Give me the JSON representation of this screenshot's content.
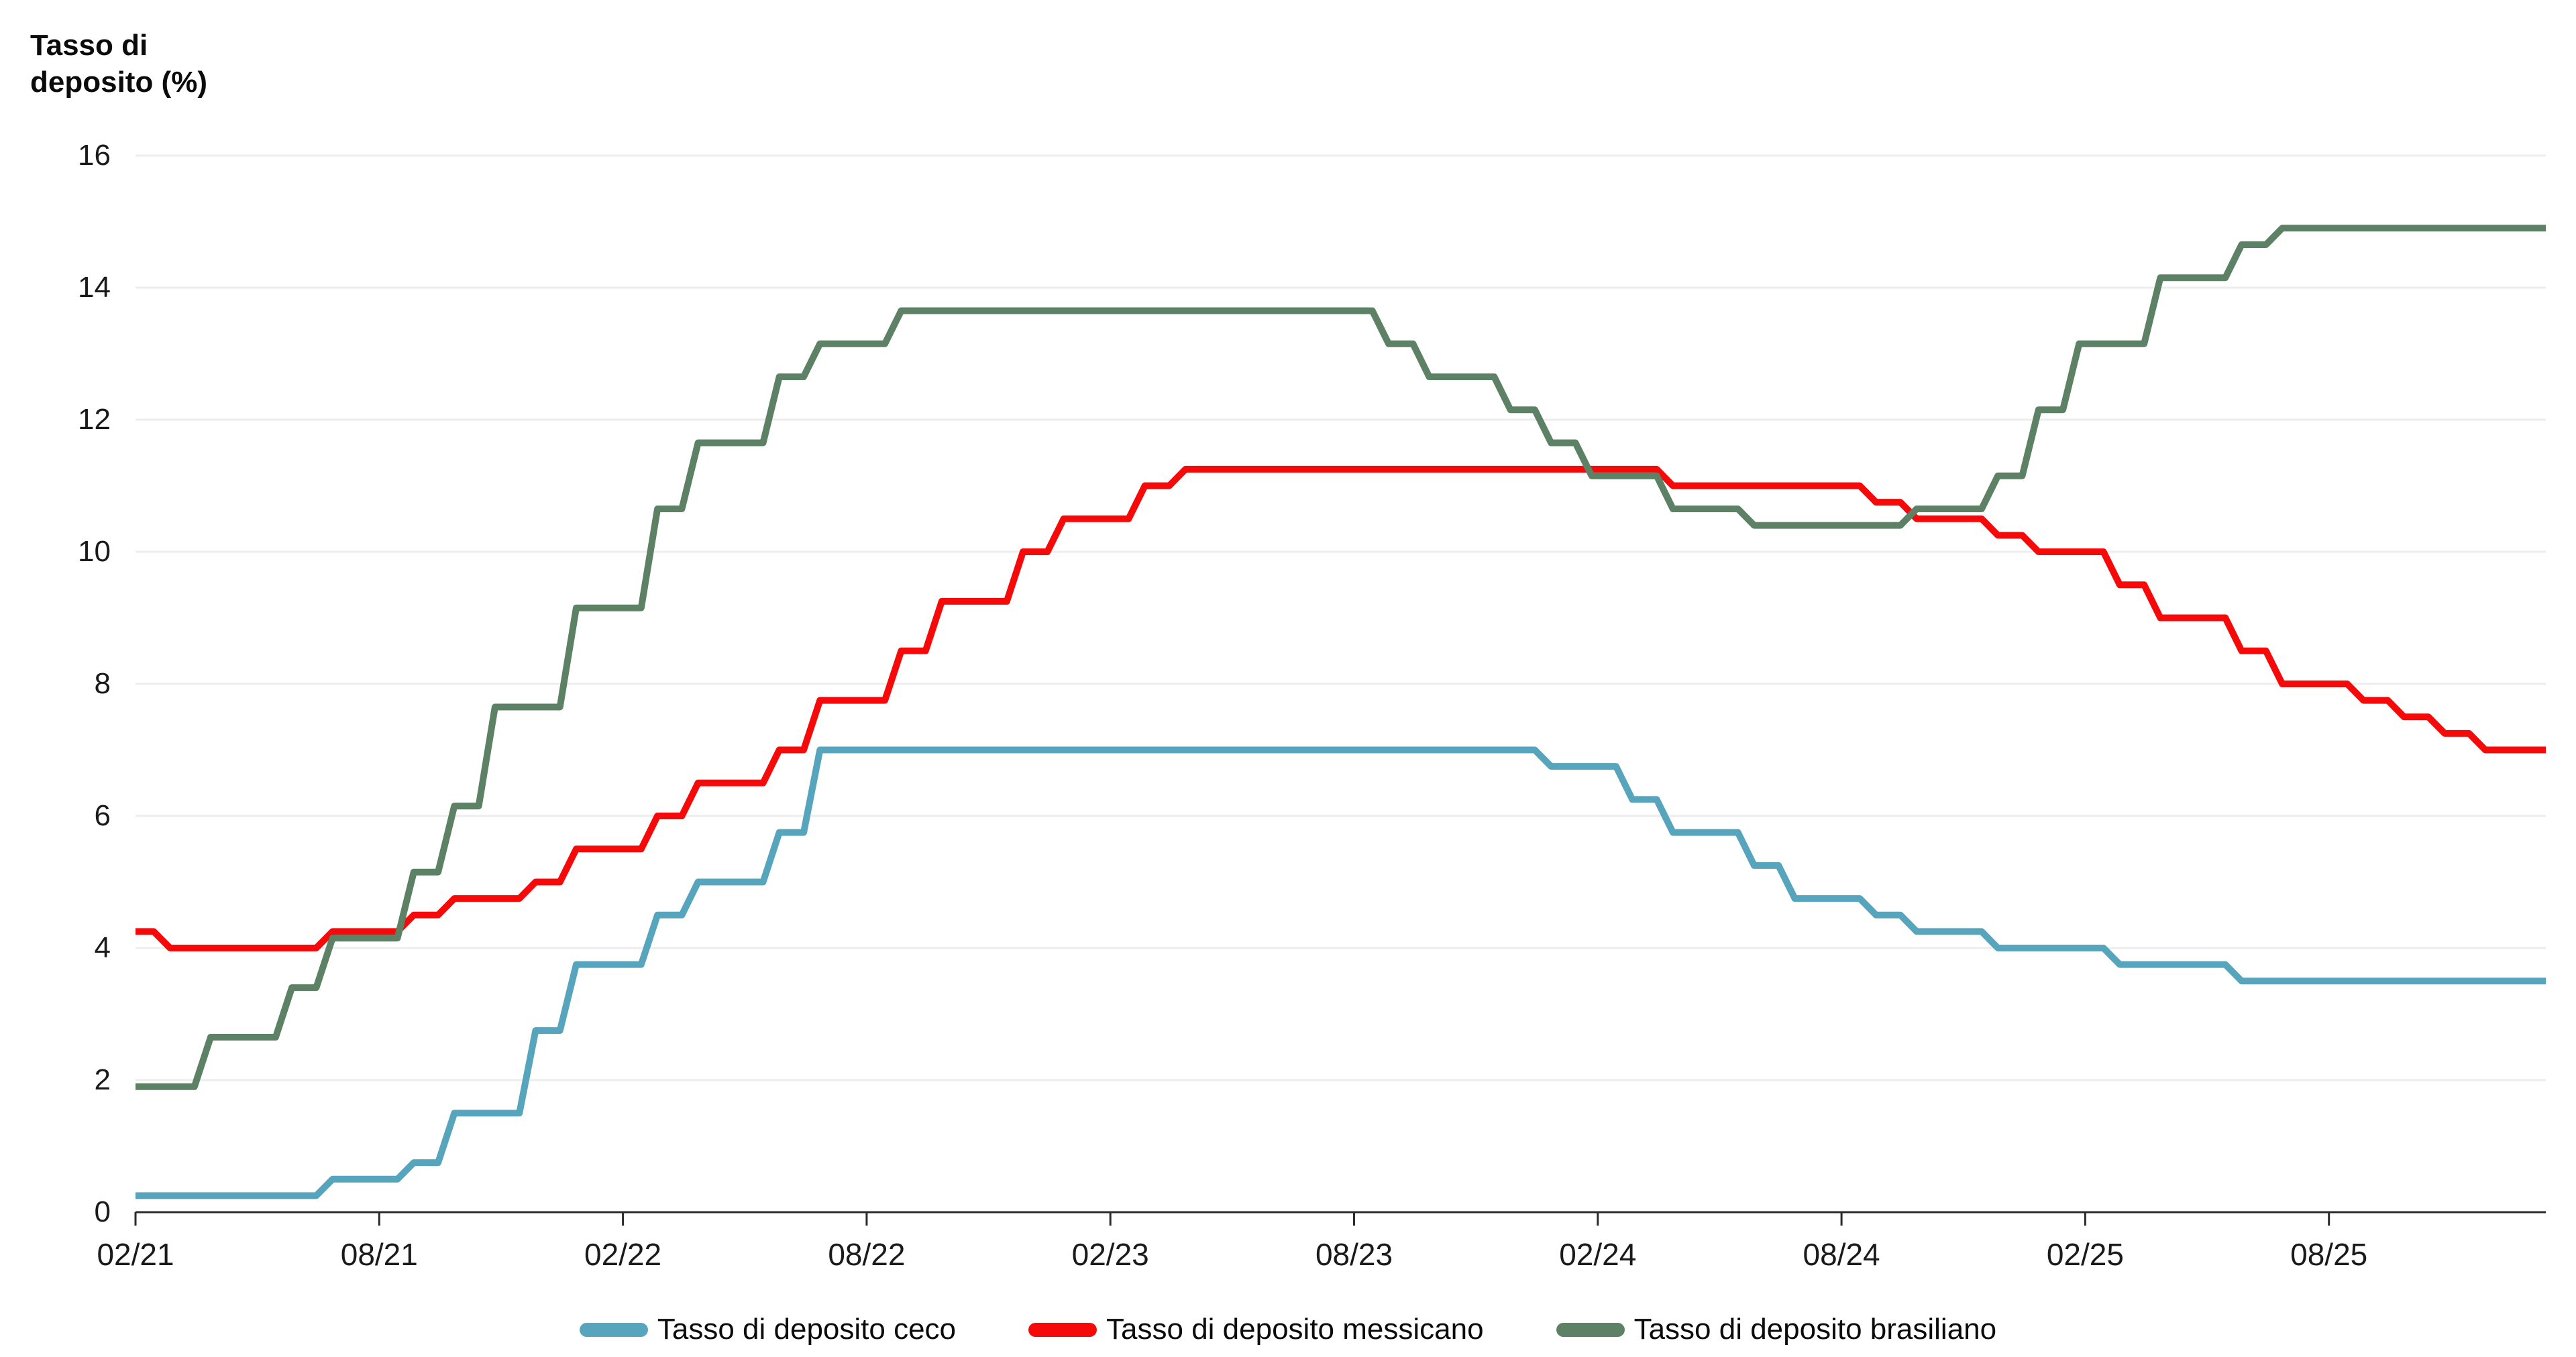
{
  "title": {
    "lines": [
      "Tasso di",
      "deposito (%)"
    ],
    "full": "Tasso di deposito (%)"
  },
  "chart_data": {
    "type": "line",
    "title": "",
    "ylabel": "Tasso di deposito (%)",
    "xlabel": "",
    "ylim": [
      0,
      16
    ],
    "grid": "horizontal",
    "legend_position": "bottom",
    "x_frequency": "monthly",
    "categories": [
      "02/21",
      "03/21",
      "04/21",
      "05/21",
      "06/21",
      "07/21",
      "08/21",
      "09/21",
      "10/21",
      "11/21",
      "12/21",
      "01/22",
      "02/22",
      "03/22",
      "04/22",
      "05/22",
      "06/22",
      "07/22",
      "08/22",
      "09/22",
      "10/22",
      "11/22",
      "12/22",
      "01/23",
      "02/23",
      "03/23",
      "04/23",
      "05/23",
      "06/23",
      "07/23",
      "08/23",
      "09/23",
      "10/23",
      "11/23",
      "12/23",
      "01/24",
      "02/24",
      "03/24",
      "04/24",
      "05/24",
      "06/24",
      "07/24",
      "08/24",
      "09/24",
      "10/24",
      "11/24",
      "12/24",
      "01/25",
      "02/25",
      "03/25",
      "04/25",
      "05/25",
      "06/25",
      "07/25",
      "08/25",
      "09/25",
      "10/25",
      "11/25",
      "12/25"
    ],
    "x_tick_labels": [
      "02/21",
      "08/21",
      "02/22",
      "08/22",
      "02/23",
      "08/23",
      "02/24",
      "08/24",
      "02/25",
      "08/25"
    ],
    "x_tick_months": [
      0,
      6,
      12,
      18,
      24,
      30,
      36,
      42,
      48,
      54
    ],
    "y_ticks": [
      0,
      2,
      4,
      6,
      8,
      10,
      12,
      14,
      16
    ],
    "series": [
      {
        "name": "Tasso di deposito ceco",
        "color": "#57a4bd",
        "values": [
          0.25,
          0.25,
          0.25,
          0.25,
          0.25,
          0.5,
          0.5,
          0.75,
          1.5,
          1.5,
          2.75,
          3.75,
          3.75,
          4.5,
          5.0,
          5.0,
          5.75,
          7.0,
          7.0,
          7.0,
          7.0,
          7.0,
          7.0,
          7.0,
          7.0,
          7.0,
          7.0,
          7.0,
          7.0,
          7.0,
          7.0,
          7.0,
          7.0,
          7.0,
          7.0,
          6.75,
          6.75,
          6.25,
          5.75,
          5.75,
          5.25,
          4.75,
          4.75,
          4.5,
          4.25,
          4.25,
          4.0,
          4.0,
          4.0,
          3.75,
          3.75,
          3.75,
          3.5,
          3.5,
          3.5,
          3.5,
          3.5,
          3.5,
          3.5
        ]
      },
      {
        "name": "Tasso di deposito messicano",
        "color": "#f60909",
        "values": [
          4.25,
          4.0,
          4.0,
          4.0,
          4.0,
          4.25,
          4.25,
          4.5,
          4.75,
          4.75,
          5.0,
          5.5,
          5.5,
          6.0,
          6.5,
          6.5,
          7.0,
          7.75,
          7.75,
          8.5,
          9.25,
          9.25,
          10.0,
          10.5,
          10.5,
          11.0,
          11.25,
          11.25,
          11.25,
          11.25,
          11.25,
          11.25,
          11.25,
          11.25,
          11.25,
          11.25,
          11.25,
          11.25,
          11.0,
          11.0,
          11.0,
          11.0,
          11.0,
          10.75,
          10.5,
          10.5,
          10.25,
          10.0,
          10.0,
          9.5,
          9.0,
          9.0,
          8.5,
          8.0,
          8.0,
          7.75,
          7.5,
          7.25,
          7.0
        ]
      },
      {
        "name": "Tasso di deposito brasiliano",
        "color": "#5d8164",
        "values": [
          1.9,
          1.9,
          2.65,
          2.65,
          3.4,
          4.15,
          4.15,
          5.15,
          6.15,
          7.65,
          7.65,
          9.15,
          9.15,
          10.65,
          11.65,
          11.65,
          12.65,
          13.15,
          13.15,
          13.65,
          13.65,
          13.65,
          13.65,
          13.65,
          13.65,
          13.65,
          13.65,
          13.65,
          13.65,
          13.65,
          13.65,
          13.15,
          12.65,
          12.65,
          12.15,
          11.65,
          11.15,
          11.15,
          10.65,
          10.65,
          10.4,
          10.4,
          10.4,
          10.4,
          10.65,
          10.65,
          11.15,
          12.15,
          13.15,
          13.15,
          14.15,
          14.15,
          14.65,
          14.9,
          14.9,
          14.9,
          14.9,
          14.9,
          14.9
        ]
      }
    ],
    "colors": {
      "grid": "#ededed",
      "axis": "#2b2b2b",
      "tick_text": "#1a1a1a"
    }
  }
}
